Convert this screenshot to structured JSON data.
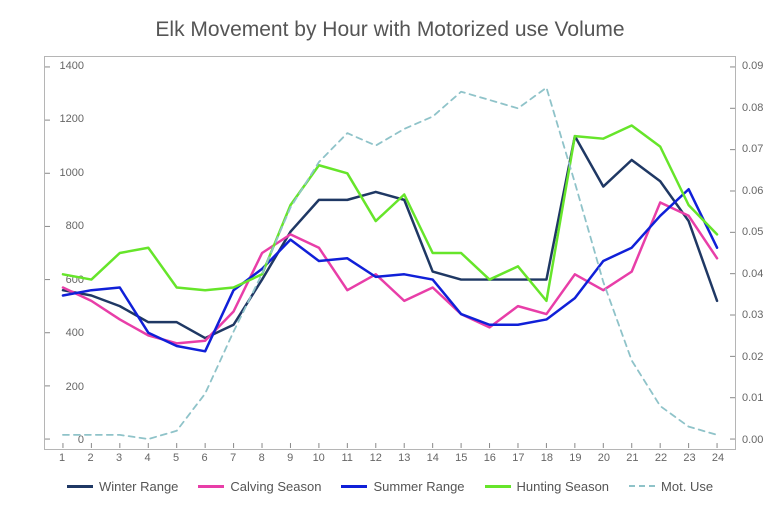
{
  "chart": {
    "type": "line",
    "title": "Elk Movement by Hour with Motorized use Volume",
    "title_fontsize": 21,
    "title_color": "#555555",
    "background_color": "#ffffff",
    "plot_border_color": "#b5b5b5",
    "grid_color": "#e0e0e0",
    "label_fontsize": 11,
    "label_color": "#666666",
    "x": {
      "categories": [
        "1",
        "2",
        "3",
        "4",
        "5",
        "6",
        "7",
        "8",
        "9",
        "10",
        "11",
        "12",
        "13",
        "14",
        "15",
        "16",
        "17",
        "18",
        "19",
        "20",
        "21",
        "22",
        "23",
        "24"
      ],
      "tick_positions": [
        1,
        2,
        3,
        4,
        5,
        6,
        7,
        8,
        9,
        10,
        11,
        12,
        13,
        14,
        15,
        16,
        17,
        18,
        19,
        20,
        21,
        22,
        23,
        24
      ]
    },
    "y_left": {
      "lim_min": 0,
      "lim_max": 1400,
      "tick_step": 200,
      "ticks": [
        "0",
        "200",
        "400",
        "600",
        "800",
        "1000",
        "1200",
        "1400"
      ]
    },
    "y_right": {
      "lim_min": 0.0,
      "lim_max": 0.09,
      "tick_step": 0.01,
      "ticks": [
        "0.00",
        "0.01",
        "0.02",
        "0.03",
        "0.04",
        "0.05",
        "0.06",
        "0.07",
        "0.08",
        "0.09"
      ]
    },
    "series": [
      {
        "name": "Winter Range",
        "color": "#1f3864",
        "axis": "left",
        "line_width": 2.5,
        "dash": "solid",
        "values": [
          560,
          540,
          500,
          440,
          440,
          380,
          430,
          600,
          780,
          900,
          900,
          930,
          900,
          630,
          600,
          600,
          600,
          600,
          1140,
          950,
          1050,
          970,
          820,
          520
        ]
      },
      {
        "name": "Calving Season",
        "color": "#e83ea8",
        "axis": "left",
        "line_width": 2.5,
        "dash": "solid",
        "values": [
          570,
          520,
          450,
          390,
          360,
          370,
          480,
          700,
          770,
          720,
          560,
          620,
          520,
          570,
          470,
          420,
          500,
          470,
          620,
          560,
          630,
          890,
          840,
          680
        ]
      },
      {
        "name": "Summer Range",
        "color": "#1020d8",
        "axis": "left",
        "line_width": 2.5,
        "dash": "solid",
        "values": [
          540,
          560,
          570,
          400,
          350,
          330,
          560,
          640,
          750,
          670,
          680,
          610,
          620,
          600,
          470,
          430,
          430,
          450,
          530,
          670,
          720,
          840,
          940,
          720
        ]
      },
      {
        "name": "Hunting Season",
        "color": "#66e52a",
        "axis": "left",
        "line_width": 2.5,
        "dash": "solid",
        "values": [
          620,
          600,
          700,
          720,
          570,
          560,
          570,
          620,
          880,
          1030,
          1000,
          820,
          920,
          700,
          700,
          600,
          650,
          520,
          1140,
          1130,
          1180,
          1100,
          880,
          770
        ]
      },
      {
        "name": "Mot. Use",
        "color": "#8fc3c9",
        "axis": "right",
        "line_width": 1.8,
        "dash": "dashed",
        "values": [
          0.001,
          0.001,
          0.001,
          0.0,
          0.002,
          0.011,
          0.026,
          0.04,
          0.056,
          0.067,
          0.074,
          0.071,
          0.075,
          0.078,
          0.084,
          0.082,
          0.08,
          0.085,
          0.062,
          0.038,
          0.019,
          0.008,
          0.003,
          0.001
        ]
      }
    ],
    "legend": {
      "position": "bottom",
      "fontsize": 13,
      "items": [
        "Winter Range",
        "Calving Season",
        "Summer Range",
        "Hunting Season",
        "Mot. Use"
      ]
    }
  }
}
